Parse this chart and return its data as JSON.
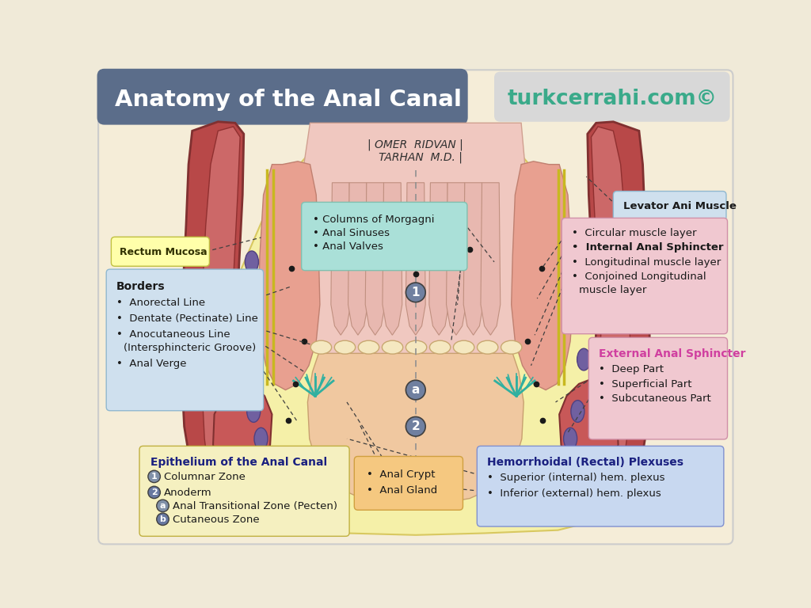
{
  "title": "Anatomy of the Anal Canal",
  "watermark": "turkcerrahi.com©",
  "title_bg": "#5b6d8a",
  "watermark_bg": "#d0d0d0",
  "watermark_text_color": "#3aaa8a",
  "bg_outer": "#f0ead8",
  "bg_inner": "#f5edd8",
  "fat_color": "#f5f0b0",
  "muscle_dark": "#b84848",
  "muscle_mid": "#cc7070",
  "muscle_light": "#e8a090",
  "pink_lumen": "#f0c8c0",
  "lower_lumen": "#f0c8a0",
  "column_color": "#e8b0a8",
  "vessel_color": "#7060a0",
  "teal_color": "#40b0a0",
  "author": "| OMER  RIDVAN |\n   TARHAN M.D. |"
}
